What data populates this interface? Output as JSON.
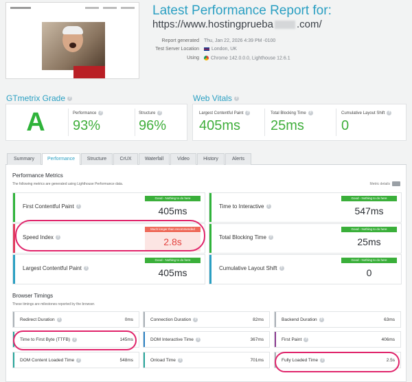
{
  "header": {
    "title": "Latest Performance Report for:",
    "url_start": "https://www.hostingprueba",
    "url_end": ".com/",
    "meta": [
      {
        "label": "Report generated",
        "value": "Thu, Jan 22, 2026 4:39 PM -0100"
      },
      {
        "label": "Test Server Location",
        "value": "London, UK"
      },
      {
        "label": "Using",
        "value": "Chrome 142.0.0.0, Lighthouse 12.6.1"
      }
    ]
  },
  "grade": {
    "heading": "GTmetrix Grade",
    "letter": "A",
    "performance_label": "Performance",
    "performance_value": "93%",
    "structure_label": "Structure",
    "structure_value": "96%",
    "grade_color": "#2fb33a"
  },
  "vitals": {
    "heading": "Web Vitals",
    "items": [
      {
        "label": "Largest Contentful Paint",
        "value": "405ms"
      },
      {
        "label": "Total Blocking Time",
        "value": "25ms"
      },
      {
        "label": "Cumulative Layout Shift",
        "value": "0"
      }
    ]
  },
  "tabs": [
    "Summary",
    "Performance",
    "Structure",
    "CrUX",
    "Waterfall",
    "Video",
    "History",
    "Alerts"
  ],
  "active_tab": "Performance",
  "perf": {
    "heading": "Performance Metrics",
    "sub": "The following metrics are generated using Lighthouse Performance data.",
    "details_label": "Metric details",
    "metrics": [
      {
        "name": "First Contentful Paint",
        "badge": "Good - Nothing to do here",
        "value": "405ms",
        "status": "good"
      },
      {
        "name": "Time to Interactive",
        "badge": "Good - Nothing to do here",
        "value": "547ms",
        "status": "good"
      },
      {
        "name": "Speed Index",
        "badge": "Much longer than recommended",
        "value": "2.8s",
        "status": "bad"
      },
      {
        "name": "Total Blocking Time",
        "badge": "Good - Nothing to do here",
        "value": "25ms",
        "status": "good"
      },
      {
        "name": "Largest Contentful Paint",
        "badge": "Good - Nothing to do here",
        "value": "405ms",
        "status": "good"
      },
      {
        "name": "Cumulative Layout Shift",
        "badge": "Good - Nothing to do here",
        "value": "0",
        "status": "good"
      }
    ]
  },
  "timings": {
    "heading": "Browser Timings",
    "sub": "These timings are milestones reported by the browser.",
    "items": [
      {
        "name": "Redirect Duration",
        "value": "0ms"
      },
      {
        "name": "Connection Duration",
        "value": "82ms"
      },
      {
        "name": "Backend Duration",
        "value": "63ms"
      },
      {
        "name": "Time to First Byte (TTFB)",
        "value": "145ms"
      },
      {
        "name": "DOM Interactive Time",
        "value": "367ms"
      },
      {
        "name": "First Paint",
        "value": "406ms"
      },
      {
        "name": "DOM Content Loaded Time",
        "value": "548ms"
      },
      {
        "name": "Onload Time",
        "value": "701ms"
      },
      {
        "name": "Fully Loaded Time",
        "value": "2.5s"
      }
    ]
  }
}
